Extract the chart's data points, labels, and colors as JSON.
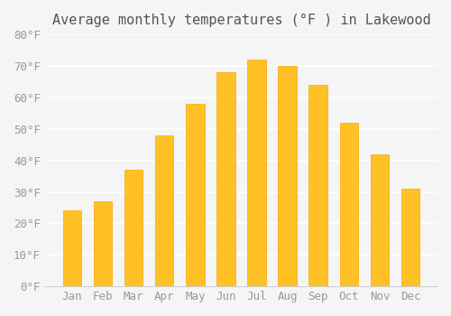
{
  "months": [
    "Jan",
    "Feb",
    "Mar",
    "Apr",
    "May",
    "Jun",
    "Jul",
    "Aug",
    "Sep",
    "Oct",
    "Nov",
    "Dec"
  ],
  "temperatures": [
    24,
    27,
    37,
    48,
    58,
    68,
    72,
    70,
    64,
    52,
    42,
    31
  ],
  "bar_color": "#FFC125",
  "bar_edge_color": "#FFA500",
  "title": "Average monthly temperatures (°F ) in Lakewood",
  "ylim": [
    0,
    80
  ],
  "yticks": [
    0,
    10,
    20,
    30,
    40,
    50,
    60,
    70,
    80
  ],
  "ytick_labels": [
    "0°F",
    "10°F",
    "20°F",
    "30°F",
    "40°F",
    "50°F",
    "60°F",
    "70°F",
    "80°F"
  ],
  "background_color": "#f5f5f5",
  "grid_color": "#ffffff",
  "title_fontsize": 11,
  "tick_fontsize": 9,
  "title_color": "#555555",
  "tick_color": "#999999"
}
